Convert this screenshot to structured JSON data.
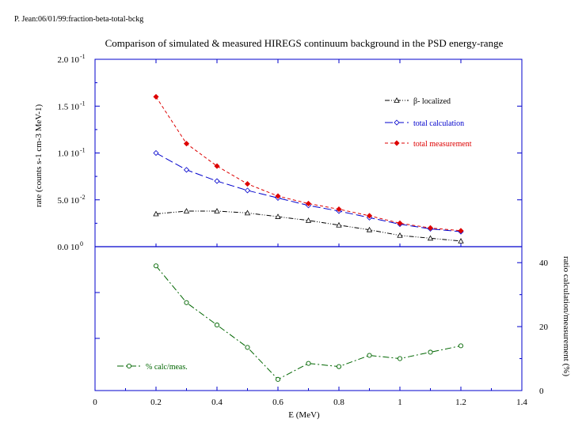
{
  "header_note": "P. Jean:06/01/99:fraction-beta-total-bckg",
  "chart_data": {
    "type": "line",
    "title": "Comparison of simulated & measured HIREGS continuum background in the PSD energy-range",
    "xlabel": "E (MeV)",
    "x_ticks": [
      "0",
      "0.2",
      "0.4",
      "0.6",
      "0.8",
      "1",
      "1.2",
      "1.4"
    ],
    "xlim": [
      0,
      1.4
    ],
    "top_panel": {
      "ylabel": "rate (counts s-1 cm-3 MeV-1)",
      "ylim": [
        0,
        0.2
      ],
      "y_ticks": [
        {
          "value": 0.0,
          "mantissa": "0.0 10",
          "exp": "0"
        },
        {
          "value": 0.05,
          "mantissa": "5.0 10",
          "exp": "-2"
        },
        {
          "value": 0.1,
          "mantissa": "1.0 10",
          "exp": "-1"
        },
        {
          "value": 0.15,
          "mantissa": "1.5 10",
          "exp": "-1"
        },
        {
          "value": 0.2,
          "mantissa": "2.0 10",
          "exp": "-1"
        }
      ],
      "series": [
        {
          "name": "β- localized",
          "color": "#000000",
          "marker": "triangle",
          "x": [
            0.2,
            0.3,
            0.4,
            0.5,
            0.6,
            0.7,
            0.8,
            0.9,
            1.0,
            1.1,
            1.2
          ],
          "y": [
            0.035,
            0.038,
            0.038,
            0.036,
            0.032,
            0.028,
            0.023,
            0.018,
            0.012,
            0.009,
            0.006
          ]
        },
        {
          "name": "total calculation",
          "color": "#0000cc",
          "marker": "diamond-open",
          "x": [
            0.2,
            0.3,
            0.4,
            0.5,
            0.6,
            0.7,
            0.8,
            0.9,
            1.0,
            1.1,
            1.2
          ],
          "y": [
            0.1,
            0.082,
            0.07,
            0.06,
            0.052,
            0.044,
            0.038,
            0.031,
            0.024,
            0.019,
            0.016
          ]
        },
        {
          "name": "total measurement",
          "color": "#dd0000",
          "marker": "diamond-filled",
          "x": [
            0.2,
            0.3,
            0.4,
            0.5,
            0.6,
            0.7,
            0.8,
            0.9,
            1.0,
            1.1,
            1.2
          ],
          "y": [
            0.16,
            0.11,
            0.086,
            0.067,
            0.054,
            0.046,
            0.04,
            0.033,
            0.025,
            0.02,
            0.017
          ]
        }
      ]
    },
    "bottom_panel": {
      "ylabel": "ratio calculation/measurement (%)",
      "ylim": [
        0,
        45
      ],
      "y_ticks": [
        "0",
        "20",
        "40"
      ],
      "y_tick_values": [
        0,
        20,
        40
      ],
      "series": [
        {
          "name": "% calc/meas.",
          "color": "#006600",
          "marker": "circle-open",
          "x": [
            0.2,
            0.3,
            0.4,
            0.5,
            0.6,
            0.7,
            0.8,
            0.9,
            1.0,
            1.1,
            1.2
          ],
          "y": [
            39,
            27.5,
            20.5,
            13.5,
            3.5,
            8.5,
            7.5,
            11,
            10,
            12,
            14
          ]
        }
      ]
    }
  }
}
